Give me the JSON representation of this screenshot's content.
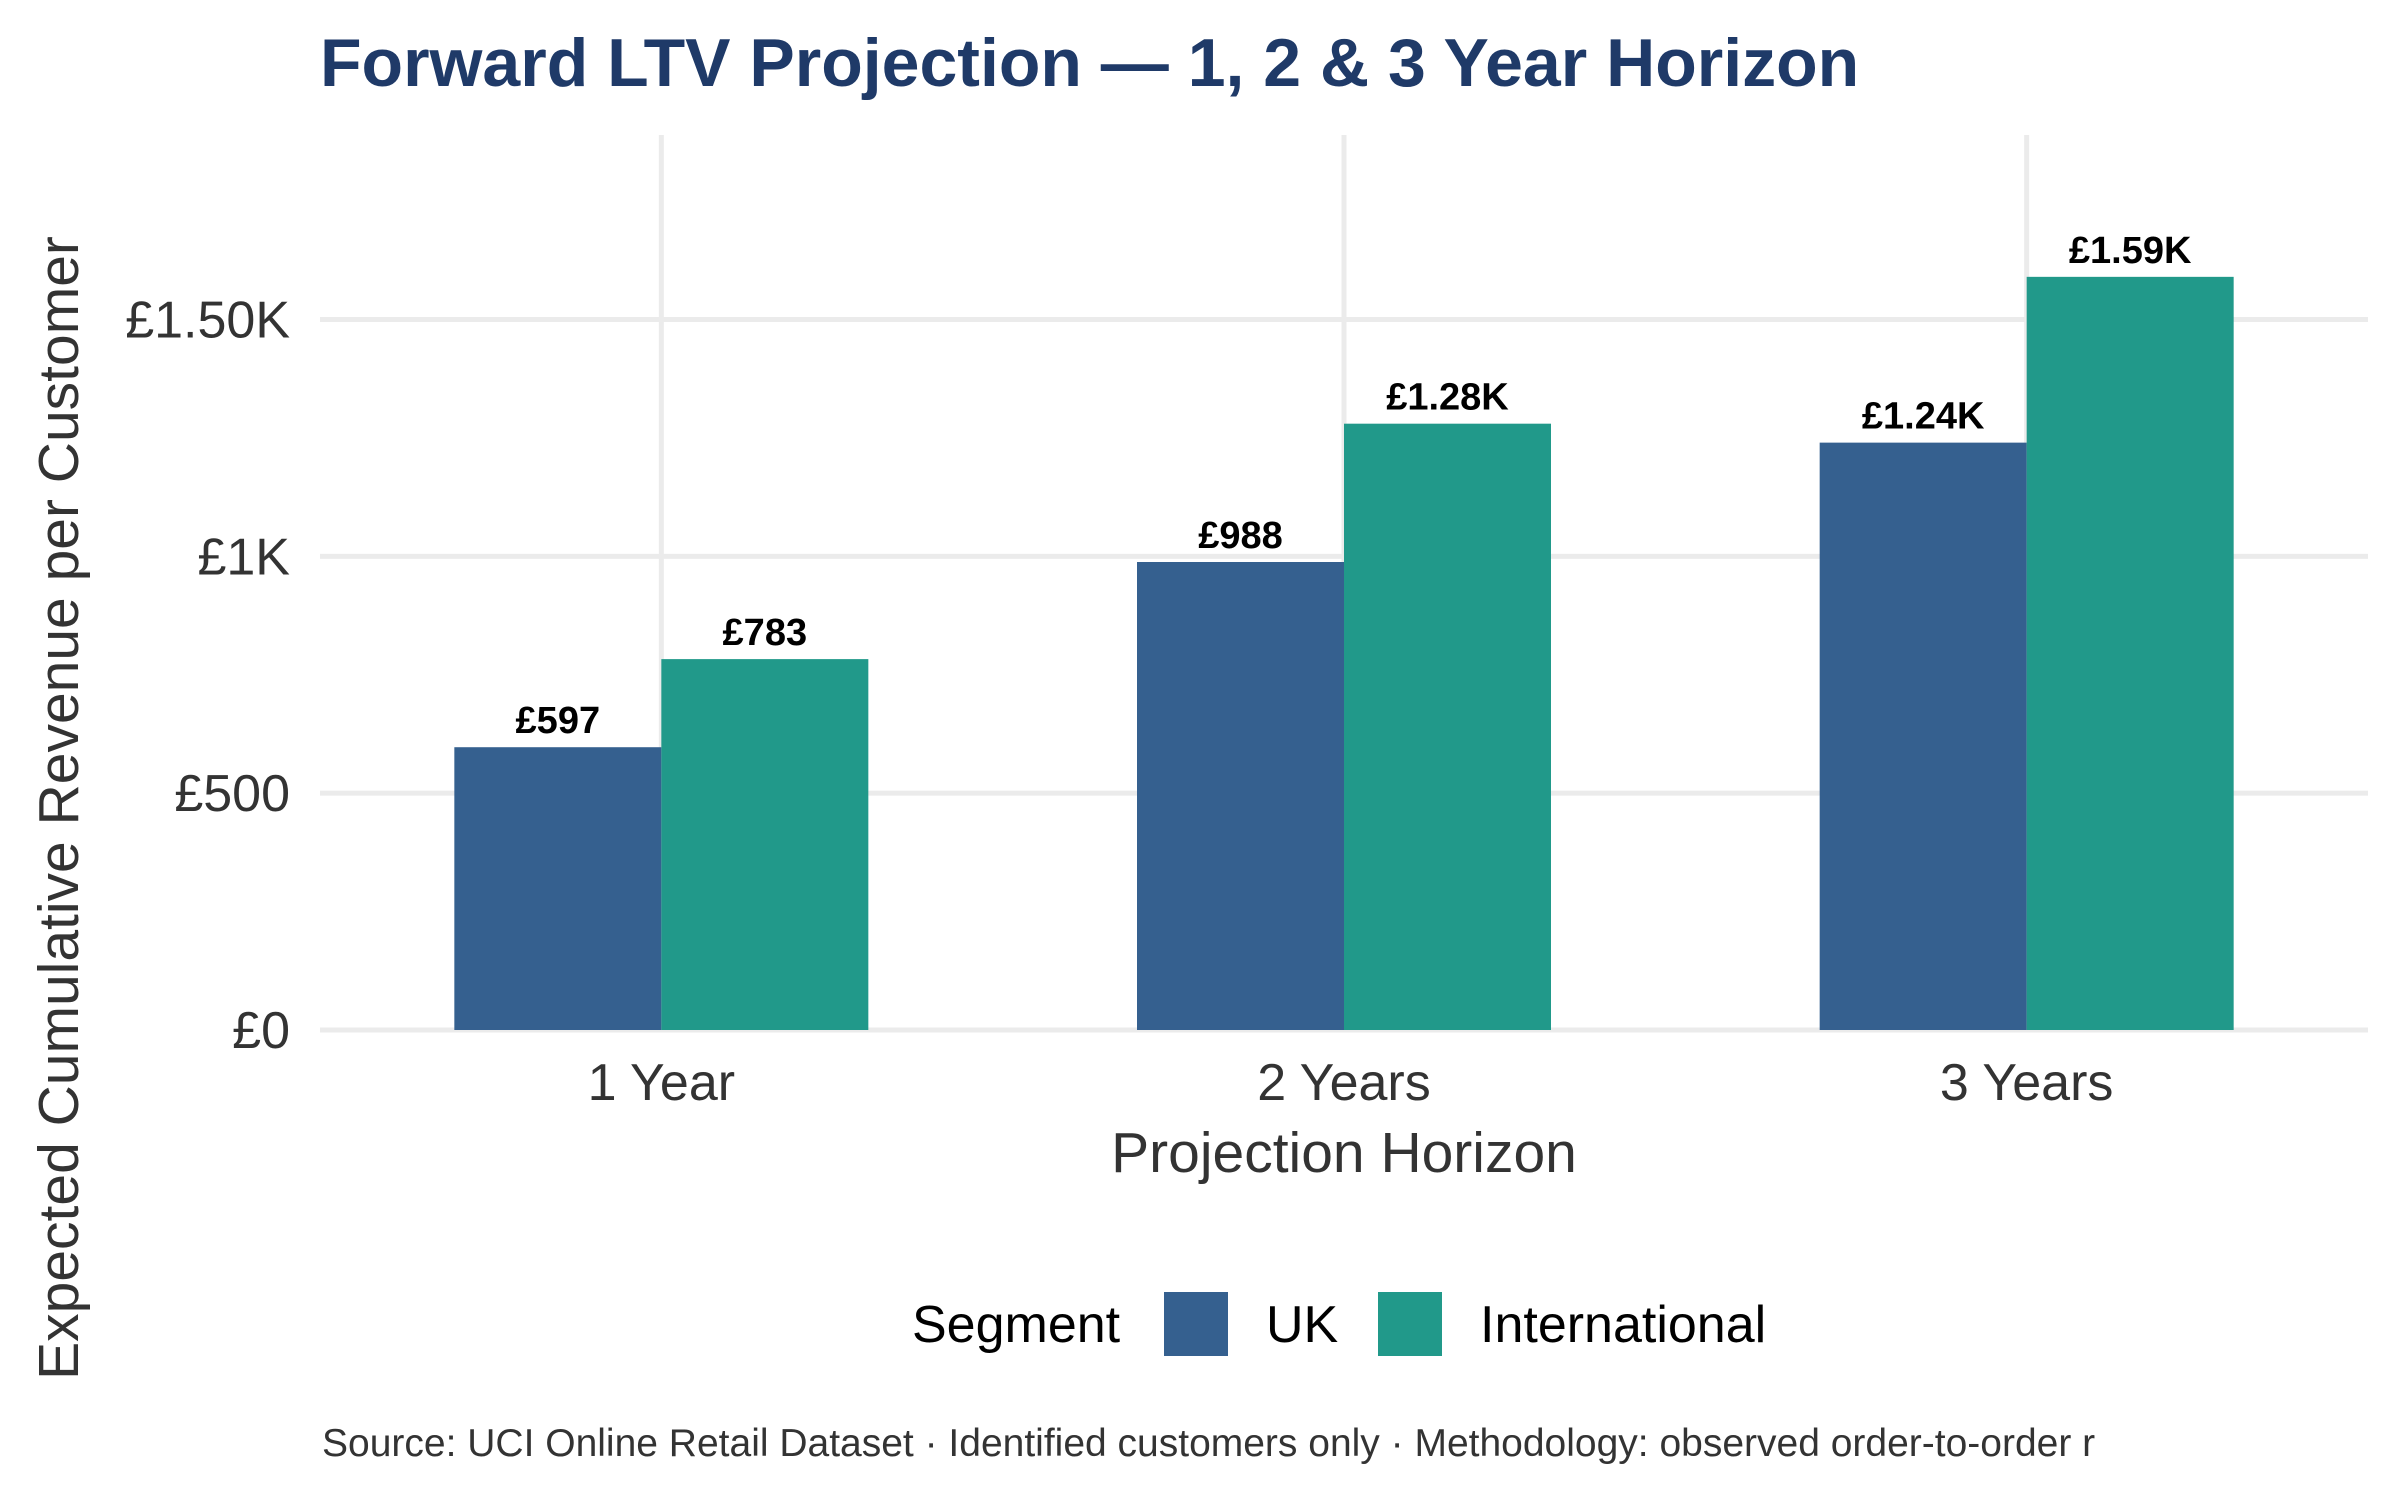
{
  "chart_data": {
    "type": "bar",
    "title": "Forward LTV Projection — 1, 2 & 3 Year Horizon",
    "xlabel": "Projection Horizon",
    "ylabel": "Expected Cumulative Revenue per Customer",
    "categories": [
      "1 Year",
      "2 Years",
      "3 Years"
    ],
    "series": [
      {
        "name": "UK",
        "color": "#35608f",
        "values": [
          597,
          988,
          1240
        ],
        "labels": [
          "£597",
          "£988",
          "£1.24K"
        ]
      },
      {
        "name": "International",
        "color": "#21998a",
        "values": [
          783,
          1280,
          1590
        ],
        "labels": [
          "£783",
          "£1.28K",
          "£1.59K"
        ]
      }
    ],
    "ylim": [
      0,
      1900
    ],
    "yticks": [
      0,
      500,
      1000,
      1500
    ],
    "ytick_labels": [
      "£0",
      "£500",
      "£1K",
      "£1.50K"
    ],
    "grid": true,
    "legend_title": "Segment",
    "legend_position": "bottom",
    "caption": "Source: UCI Online Retail Dataset · Identified customers only · Methodology: observed order-to-order r"
  }
}
